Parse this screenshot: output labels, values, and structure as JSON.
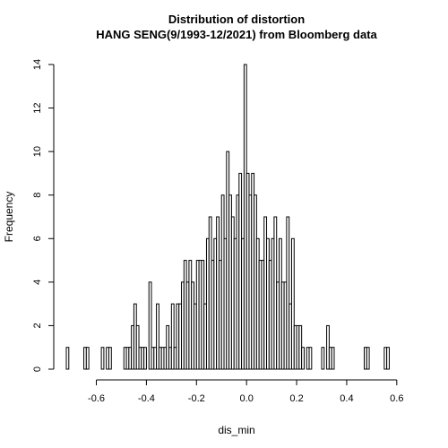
{
  "chart_data": {
    "type": "bar",
    "title": "Distribution of distortion",
    "subtitle": "HANG SENG(9/1993-12/2021) from Bloomberg data",
    "xlabel": "dis_min",
    "ylabel": "Frequency",
    "xlim": [
      -0.72,
      0.64
    ],
    "ylim": [
      0,
      14
    ],
    "x_ticks": [
      -0.6,
      -0.4,
      -0.2,
      0.0,
      0.2,
      0.4,
      0.6
    ],
    "x_tick_labels": [
      "-0.6",
      "-0.4",
      "-0.2",
      "0.0",
      "0.2",
      "0.4",
      "0.6"
    ],
    "y_ticks": [
      0,
      2,
      4,
      6,
      8,
      10,
      12,
      14
    ],
    "y_tick_labels": [
      "0",
      "2",
      "4",
      "6",
      "8",
      "10",
      "12",
      "14"
    ],
    "bin_start": -0.72,
    "bin_width": 0.01,
    "values": [
      1,
      0,
      0,
      0,
      0,
      0,
      0,
      1,
      1,
      0,
      0,
      0,
      0,
      0,
      1,
      0,
      1,
      1,
      0,
      0,
      0,
      0,
      0,
      1,
      1,
      1,
      2,
      3,
      2,
      1,
      1,
      1,
      0,
      4,
      1,
      1,
      3,
      1,
      1,
      1,
      2,
      1,
      3,
      1,
      3,
      3,
      4,
      5,
      4,
      5,
      4,
      3,
      5,
      5,
      5,
      3,
      6,
      7,
      5,
      6,
      7,
      5,
      8,
      6,
      10,
      8,
      7,
      6,
      8,
      9,
      6,
      14,
      9,
      8,
      9,
      8,
      6,
      5,
      5,
      7,
      6,
      5,
      6,
      7,
      4,
      6,
      4,
      4,
      7,
      3,
      6,
      2,
      2,
      2,
      1,
      0,
      1,
      1,
      0,
      0,
      0,
      0,
      1,
      0,
      2,
      1,
      1,
      0,
      0,
      0,
      0,
      0,
      0,
      0,
      0,
      0,
      0,
      0,
      0,
      1,
      1,
      0,
      0,
      0,
      0,
      0,
      0,
      1,
      1
    ]
  }
}
